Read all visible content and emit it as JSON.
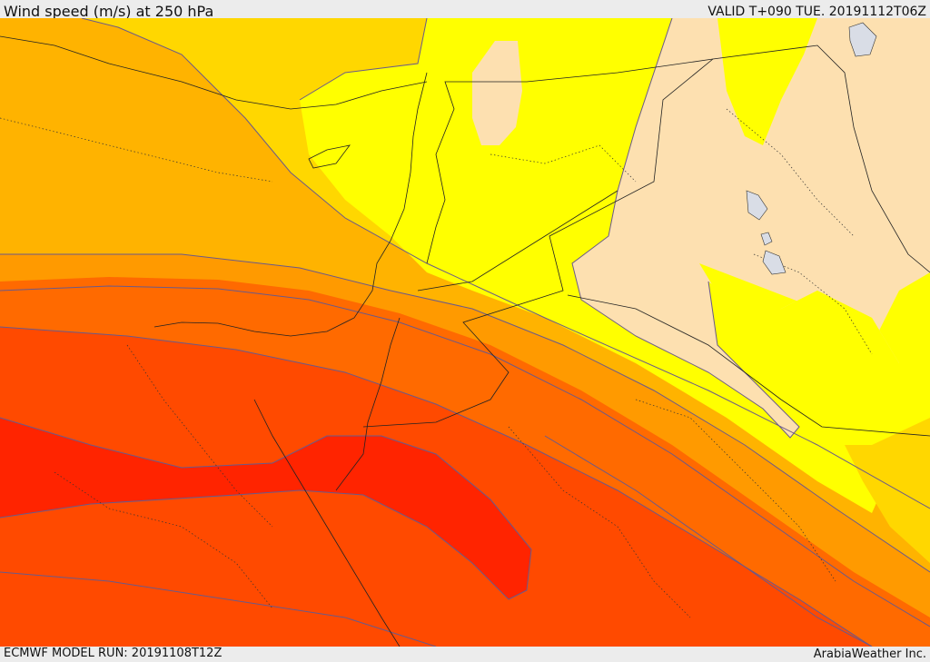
{
  "header": {
    "title": "Wind speed (m/s) at 250 hPa",
    "valid": "VALID T+090 TUE. 20191112T06Z"
  },
  "footer": {
    "model_run": "ECMWF MODEL RUN: 20191108T12Z",
    "credit": "ArabiaWeather Inc."
  },
  "palette": {
    "lightest": "#fde0b0",
    "yellow": "#ffff00",
    "gold": "#ffd700",
    "amber": "#ffb300",
    "orange": "#ff9a00",
    "dark_orange": "#ff6a00",
    "red_orange": "#ff4a00",
    "red": "#ff2400",
    "lakes": "#d9dde6"
  }
}
